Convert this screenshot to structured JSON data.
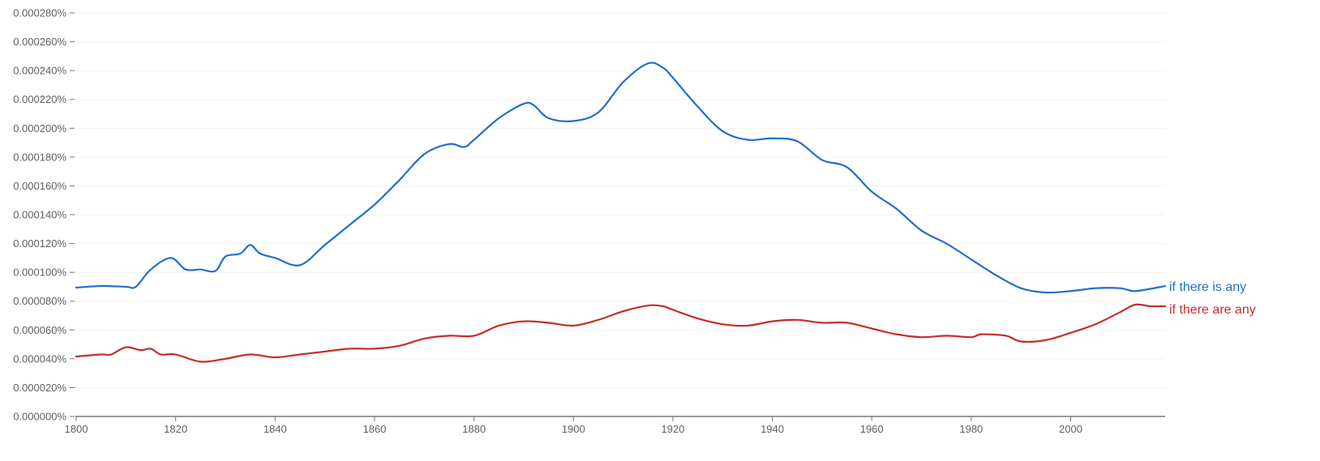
{
  "chart_data": {
    "type": "line",
    "title": "",
    "xlabel": "",
    "ylabel": "",
    "xlim": [
      1800,
      2019
    ],
    "ylim": [
      0,
      0.00028
    ],
    "x_ticks": [
      1800,
      1820,
      1840,
      1860,
      1880,
      1900,
      1920,
      1940,
      1960,
      1980,
      2000
    ],
    "x_tick_labels": [
      "1800",
      "1820",
      "1840",
      "1860",
      "1880",
      "1900",
      "1920",
      "1940",
      "1960",
      "1980",
      "2000"
    ],
    "y_ticks": [
      0,
      2e-05,
      4e-05,
      6e-05,
      8e-05,
      0.0001,
      0.00012,
      0.00014,
      0.00016,
      0.00018,
      0.0002,
      0.00022,
      0.00024,
      0.00026,
      0.00028
    ],
    "y_tick_labels": [
      "0.000000%",
      "0.000020%",
      "0.000040%",
      "0.000060%",
      "0.000080%",
      "0.000100%",
      "0.000120%",
      "0.000140%",
      "0.000160%",
      "0.000180%",
      "0.000200%",
      "0.000220%",
      "0.000240%",
      "0.000260%",
      "0.000280%"
    ],
    "grid": true,
    "legend": "inline-right",
    "series": [
      {
        "name": "if there is any",
        "color": "#1f6fcc",
        "x": [
          1800,
          1805,
          1810,
          1812,
          1815,
          1819,
          1822,
          1825,
          1828,
          1830,
          1833,
          1835,
          1837,
          1840,
          1845,
          1850,
          1855,
          1860,
          1865,
          1870,
          1875,
          1878,
          1880,
          1885,
          1890,
          1892,
          1895,
          1900,
          1905,
          1910,
          1915,
          1918,
          1920,
          1925,
          1930,
          1935,
          1940,
          1945,
          1950,
          1955,
          1960,
          1965,
          1970,
          1975,
          1980,
          1985,
          1990,
          1995,
          2000,
          2005,
          2010,
          2013,
          2019
        ],
        "values": [
          8.94e-05,
          9.05e-05,
          9e-05,
          9e-05,
          0.000102,
          0.00011,
          0.000102,
          0.000102,
          0.000101,
          0.000111,
          0.000113,
          0.000119,
          0.000113,
          0.00011,
          0.000105,
          0.000119,
          0.000133,
          0.000147,
          0.000164,
          0.000182,
          0.000189,
          0.000187,
          0.000192,
          0.000207,
          0.000217,
          0.000216,
          0.000207,
          0.000205,
          0.000211,
          0.000232,
          0.000245,
          0.000242,
          0.000235,
          0.000215,
          0.000198,
          0.000192,
          0.000193,
          0.000191,
          0.000178,
          0.000173,
          0.000156,
          0.000144,
          0.000129,
          0.00012,
          0.000109,
          9.8e-05,
          8.9e-05,
          8.6e-05,
          8.7e-05,
          8.9e-05,
          8.9e-05,
          8.7e-05,
          9.05e-05
        ]
      },
      {
        "name": "if there are any",
        "color": "#c62d2d",
        "x": [
          1800,
          1805,
          1807,
          1810,
          1813,
          1815,
          1817,
          1820,
          1825,
          1830,
          1835,
          1840,
          1845,
          1850,
          1855,
          1860,
          1865,
          1870,
          1875,
          1880,
          1885,
          1890,
          1895,
          1900,
          1905,
          1910,
          1915,
          1918,
          1920,
          1925,
          1930,
          1935,
          1940,
          1945,
          1950,
          1955,
          1960,
          1965,
          1970,
          1975,
          1980,
          1982,
          1987,
          1990,
          1995,
          2000,
          2005,
          2010,
          2013,
          2016,
          2019
        ],
        "values": [
          4.16e-05,
          4.3e-05,
          4.3e-05,
          4.8e-05,
          4.6e-05,
          4.7e-05,
          4.3e-05,
          4.3e-05,
          3.8e-05,
          4e-05,
          4.3e-05,
          4.1e-05,
          4.3e-05,
          4.5e-05,
          4.7e-05,
          4.7e-05,
          4.9e-05,
          5.4e-05,
          5.6e-05,
          5.6e-05,
          6.3e-05,
          6.6e-05,
          6.5e-05,
          6.3e-05,
          6.7e-05,
          7.3e-05,
          7.7e-05,
          7.65e-05,
          7.4e-05,
          6.8e-05,
          6.4e-05,
          6.3e-05,
          6.6e-05,
          6.7e-05,
          6.5e-05,
          6.5e-05,
          6.1e-05,
          5.7e-05,
          5.5e-05,
          5.6e-05,
          5.5e-05,
          5.7e-05,
          5.6e-05,
          5.2e-05,
          5.3e-05,
          5.8e-05,
          6.4e-05,
          7.25e-05,
          7.76e-05,
          7.65e-05,
          7.65e-05
        ]
      }
    ]
  }
}
